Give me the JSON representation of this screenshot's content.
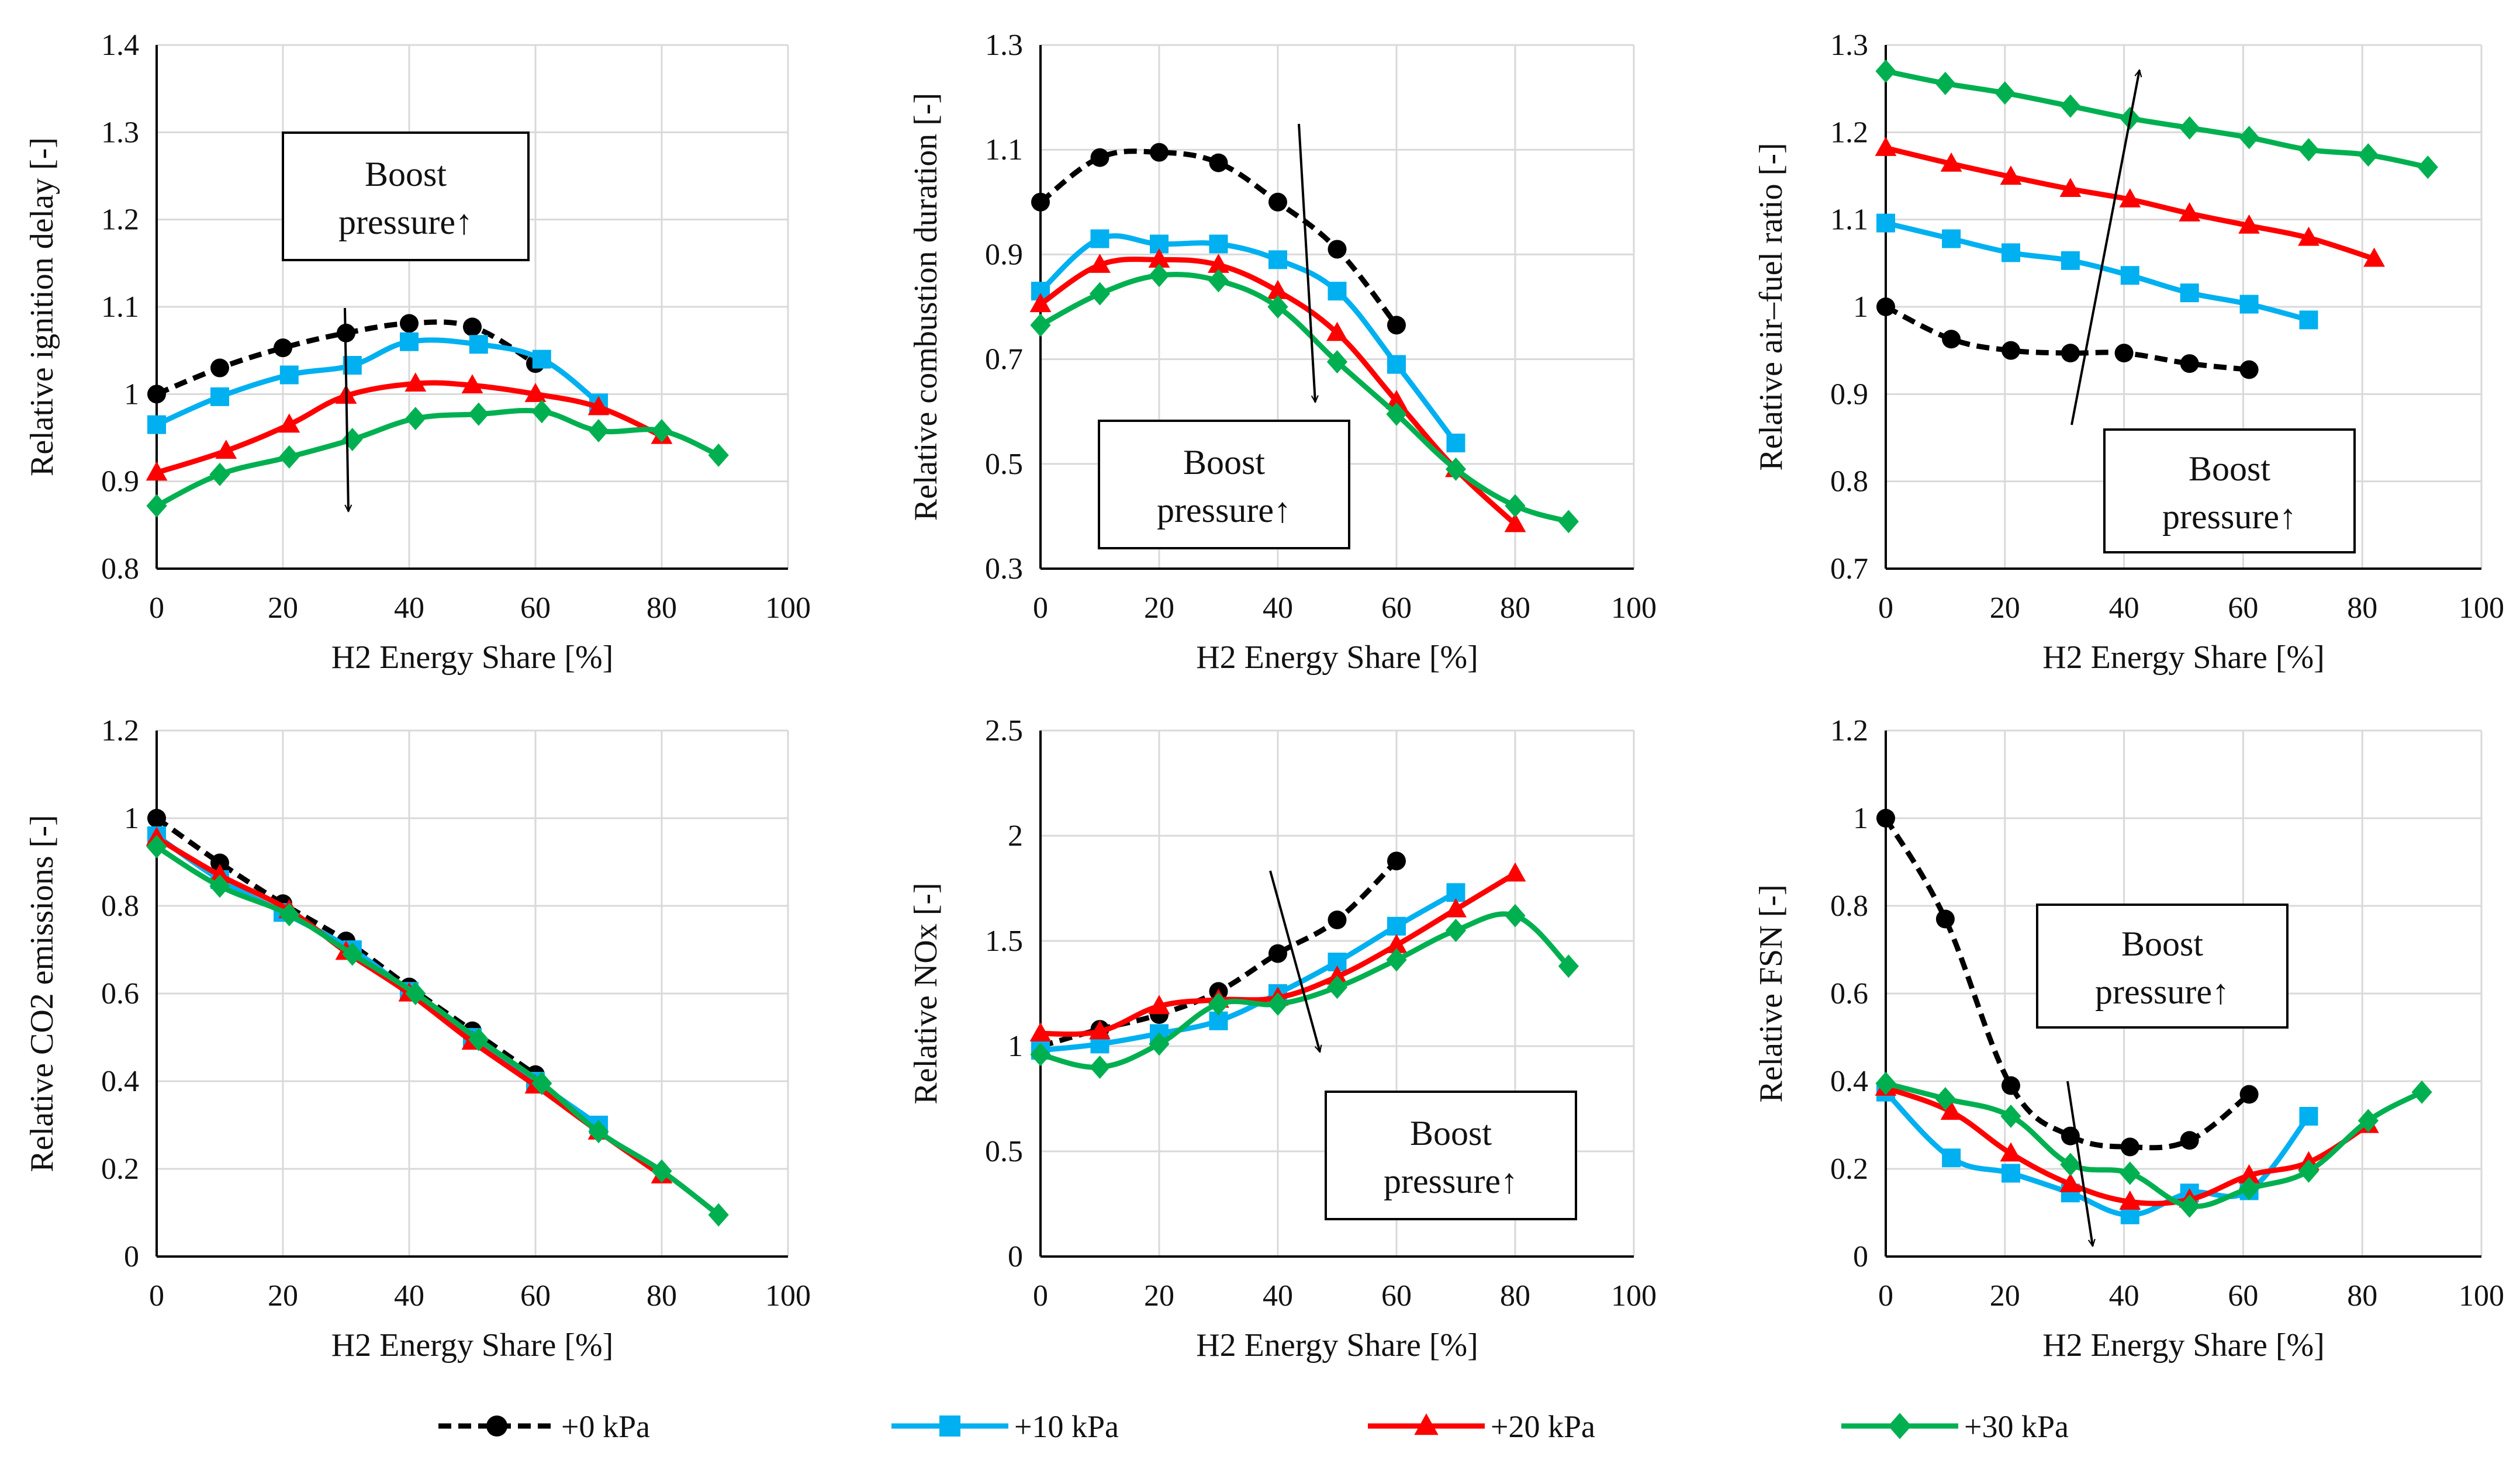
{
  "series_styles": [
    {
      "name": "+0 kPa",
      "color": "#000000",
      "dashed": true,
      "marker": "circle"
    },
    {
      "name": "+10 kPa",
      "color": "#00B0F0",
      "dashed": false,
      "marker": "square"
    },
    {
      "name": "+20 kPa",
      "color": "#FF0000",
      "dashed": false,
      "marker": "triangle"
    },
    {
      "name": "+30 kPa",
      "color": "#00B050",
      "dashed": false,
      "marker": "diamond"
    }
  ],
  "legend": {
    "entries": [
      "+0 kPa",
      "+10 kPa",
      "+20 kPa",
      "+30 kPa"
    ]
  },
  "chart_data": [
    {
      "type": "line",
      "title": "",
      "annotation": [
        "Boost",
        "pressure↑"
      ],
      "xlabel": "H2 Energy Share [%]",
      "ylabel": "Relative ignition delay [-]",
      "xlim": [
        0,
        100
      ],
      "ylim": [
        0.8,
        1.4
      ],
      "xticks": [
        0,
        20,
        40,
        60,
        80,
        100
      ],
      "yticks": [
        0.8,
        0.9,
        1,
        1.1,
        1.2,
        1.3,
        1.4
      ],
      "ytick_labels": [
        "0.8",
        "0.9",
        "1",
        "1.1",
        "1.2",
        "1.3",
        "1.4"
      ],
      "series": [
        {
          "name": "+0 kPa",
          "x": [
            0,
            10,
            20,
            30,
            40,
            50,
            60
          ],
          "y": [
            1.0,
            1.03,
            1.053,
            1.07,
            1.081,
            1.077,
            1.035
          ]
        },
        {
          "name": "+10 kPa",
          "x": [
            0,
            10,
            21,
            31,
            40,
            51,
            61,
            70
          ],
          "y": [
            0.965,
            0.997,
            1.022,
            1.033,
            1.06,
            1.057,
            1.04,
            0.99
          ]
        },
        {
          "name": "+20 kPa",
          "x": [
            0,
            11,
            21,
            30,
            41,
            50,
            60,
            70,
            80
          ],
          "y": [
            0.91,
            0.935,
            0.965,
            0.998,
            1.012,
            1.01,
            1.0,
            0.985,
            0.952
          ]
        },
        {
          "name": "+30 kPa",
          "x": [
            0,
            10,
            21,
            31,
            41,
            51,
            61,
            70,
            80,
            89
          ],
          "y": [
            0.872,
            0.908,
            0.928,
            0.948,
            0.972,
            0.977,
            0.98,
            0.958,
            0.958,
            0.93
          ]
        }
      ]
    },
    {
      "type": "line",
      "title": "",
      "annotation": [
        "Boost",
        "pressure↑"
      ],
      "xlabel": "H2 Energy Share [%]",
      "ylabel": "Relative combustion duration [-]",
      "xlim": [
        0,
        100
      ],
      "ylim": [
        0.3,
        1.3
      ],
      "xticks": [
        0,
        20,
        40,
        60,
        80,
        100
      ],
      "yticks": [
        0.3,
        0.5,
        0.7,
        0.9,
        1.1,
        1.3
      ],
      "ytick_labels": [
        "0.3",
        "0.5",
        "0.7",
        "0.9",
        "1.1",
        "1.3"
      ],
      "series": [
        {
          "name": "+0 kPa",
          "x": [
            0,
            10,
            20,
            30,
            40,
            50,
            60
          ],
          "y": [
            1.0,
            1.085,
            1.095,
            1.075,
            1.0,
            0.91,
            0.765
          ]
        },
        {
          "name": "+10 kPa",
          "x": [
            0,
            10,
            20,
            30,
            40,
            50,
            60,
            70
          ],
          "y": [
            0.83,
            0.93,
            0.92,
            0.92,
            0.89,
            0.83,
            0.69,
            0.54
          ]
        },
        {
          "name": "+20 kPa",
          "x": [
            0,
            10,
            20,
            30,
            40,
            50,
            60,
            70,
            80
          ],
          "y": [
            0.805,
            0.88,
            0.89,
            0.88,
            0.83,
            0.75,
            0.62,
            0.49,
            0.385
          ]
        },
        {
          "name": "+30 kPa",
          "x": [
            0,
            10,
            20,
            30,
            40,
            50,
            60,
            70,
            80,
            89
          ],
          "y": [
            0.765,
            0.825,
            0.86,
            0.85,
            0.8,
            0.695,
            0.595,
            0.49,
            0.42,
            0.39
          ]
        }
      ]
    },
    {
      "type": "line",
      "title": "",
      "annotation": [
        "Boost",
        "pressure↑"
      ],
      "xlabel": "H2 Energy Share [%]",
      "ylabel": "Relative air–fuel ratio [-]",
      "xlim": [
        0,
        100
      ],
      "ylim": [
        0.7,
        1.3
      ],
      "xticks": [
        0,
        20,
        40,
        60,
        80,
        100
      ],
      "yticks": [
        0.7,
        0.8,
        0.9,
        1,
        1.1,
        1.2,
        1.3
      ],
      "ytick_labels": [
        "0.7",
        "0.8",
        "0.9",
        "1",
        "1.1",
        "1.2",
        "1.3"
      ],
      "series": [
        {
          "name": "+0 kPa",
          "x": [
            0,
            11,
            21,
            31,
            40,
            51,
            61
          ],
          "y": [
            1.0,
            0.963,
            0.95,
            0.947,
            0.947,
            0.935,
            0.928
          ]
        },
        {
          "name": "+10 kPa",
          "x": [
            0,
            11,
            21,
            31,
            41,
            51,
            61,
            71
          ],
          "y": [
            1.096,
            1.078,
            1.062,
            1.053,
            1.036,
            1.016,
            1.003,
            0.985
          ]
        },
        {
          "name": "+20 kPa",
          "x": [
            0,
            11,
            21,
            31,
            41,
            51,
            61,
            71,
            82
          ],
          "y": [
            1.182,
            1.164,
            1.149,
            1.135,
            1.123,
            1.107,
            1.093,
            1.079,
            1.055
          ]
        },
        {
          "name": "+30 kPa",
          "x": [
            0,
            10,
            20,
            31,
            41,
            51,
            61,
            71,
            81,
            91
          ],
          "y": [
            1.27,
            1.256,
            1.245,
            1.23,
            1.216,
            1.205,
            1.194,
            1.18,
            1.174,
            1.16
          ]
        }
      ]
    },
    {
      "type": "line",
      "title": "",
      "annotation": [],
      "xlabel": "H2 Energy Share [%]",
      "ylabel": "Relative CO2 emissions [-]",
      "xlim": [
        0,
        100
      ],
      "ylim": [
        0,
        1.2
      ],
      "xticks": [
        0,
        20,
        40,
        60,
        80,
        100
      ],
      "yticks": [
        0,
        0.2,
        0.4,
        0.6,
        0.8,
        1,
        1.2
      ],
      "ytick_labels": [
        "0",
        "0.2",
        "0.4",
        "0.6",
        "0.8",
        "1",
        "1.2"
      ],
      "series": [
        {
          "name": "+0 kPa",
          "x": [
            0,
            10,
            20,
            30,
            40,
            50,
            60
          ],
          "y": [
            1.0,
            0.898,
            0.805,
            0.72,
            0.615,
            0.515,
            0.415
          ]
        },
        {
          "name": "+10 kPa",
          "x": [
            0,
            10,
            20,
            31,
            40,
            50,
            60,
            70
          ],
          "y": [
            0.96,
            0.86,
            0.785,
            0.7,
            0.605,
            0.5,
            0.4,
            0.3
          ]
        },
        {
          "name": "+20 kPa",
          "x": [
            0,
            10,
            21,
            30,
            40,
            50,
            60,
            70,
            80
          ],
          "y": [
            0.955,
            0.87,
            0.79,
            0.695,
            0.6,
            0.49,
            0.39,
            0.285,
            0.185
          ]
        },
        {
          "name": "+30 kPa",
          "x": [
            0,
            10,
            21,
            31,
            41,
            51,
            61,
            70,
            80,
            89
          ],
          "y": [
            0.935,
            0.845,
            0.78,
            0.69,
            0.6,
            0.495,
            0.395,
            0.285,
            0.195,
            0.095
          ]
        }
      ]
    },
    {
      "type": "line",
      "title": "",
      "annotation": [
        "Boost",
        "pressure↑"
      ],
      "xlabel": "H2 Energy Share [%]",
      "ylabel": "Relative NOx [-]",
      "xlim": [
        0,
        100
      ],
      "ylim": [
        0,
        2.5
      ],
      "xticks": [
        0,
        20,
        40,
        60,
        80,
        100
      ],
      "yticks": [
        0,
        0.5,
        1,
        1.5,
        2,
        2.5
      ],
      "ytick_labels": [
        "0",
        "0.5",
        "1",
        "1.5",
        "2",
        "2.5"
      ],
      "series": [
        {
          "name": "+0 kPa",
          "x": [
            0,
            10,
            20,
            30,
            40,
            50,
            60
          ],
          "y": [
            1.0,
            1.08,
            1.15,
            1.26,
            1.44,
            1.6,
            1.88
          ]
        },
        {
          "name": "+10 kPa",
          "x": [
            0,
            10,
            20,
            30,
            40,
            50,
            60,
            70
          ],
          "y": [
            0.98,
            1.01,
            1.06,
            1.12,
            1.25,
            1.4,
            1.57,
            1.73
          ]
        },
        {
          "name": "+20 kPa",
          "x": [
            0,
            10,
            20,
            30,
            40,
            50,
            60,
            70,
            80
          ],
          "y": [
            1.06,
            1.07,
            1.19,
            1.22,
            1.23,
            1.33,
            1.48,
            1.65,
            1.82
          ]
        },
        {
          "name": "+30 kPa",
          "x": [
            0,
            10,
            20,
            30,
            40,
            50,
            60,
            70,
            80,
            89
          ],
          "y": [
            0.96,
            0.9,
            1.01,
            1.2,
            1.2,
            1.28,
            1.41,
            1.55,
            1.62,
            1.38
          ]
        }
      ]
    },
    {
      "type": "line",
      "title": "",
      "annotation": [
        "Boost",
        "pressure↑"
      ],
      "xlabel": "H2 Energy Share [%]",
      "ylabel": "Relative FSN [-]",
      "xlim": [
        0,
        100
      ],
      "ylim": [
        0,
        1.2
      ],
      "xticks": [
        0,
        20,
        40,
        60,
        80,
        100
      ],
      "yticks": [
        0,
        0.2,
        0.4,
        0.6,
        0.8,
        1,
        1.2
      ],
      "ytick_labels": [
        "0",
        "0.2",
        "0.4",
        "0.6",
        "0.8",
        "1",
        "1.2"
      ],
      "series": [
        {
          "name": "+0 kPa",
          "x": [
            0,
            10,
            21,
            31,
            41,
            51,
            61
          ],
          "y": [
            1.0,
            0.77,
            0.39,
            0.275,
            0.25,
            0.265,
            0.37
          ]
        },
        {
          "name": "+10 kPa",
          "x": [
            0,
            11,
            21,
            31,
            41,
            51,
            61,
            71
          ],
          "y": [
            0.375,
            0.225,
            0.19,
            0.145,
            0.095,
            0.145,
            0.15,
            0.32
          ]
        },
        {
          "name": "+20 kPa",
          "x": [
            0,
            11,
            21,
            31,
            41,
            51,
            61,
            71,
            81
          ],
          "y": [
            0.385,
            0.33,
            0.235,
            0.165,
            0.125,
            0.13,
            0.185,
            0.215,
            0.3
          ]
        },
        {
          "name": "+30 kPa",
          "x": [
            0,
            10,
            21,
            31,
            41,
            51,
            61,
            71,
            81,
            90
          ],
          "y": [
            0.395,
            0.36,
            0.32,
            0.21,
            0.19,
            0.115,
            0.155,
            0.195,
            0.31,
            0.375
          ]
        }
      ]
    }
  ]
}
